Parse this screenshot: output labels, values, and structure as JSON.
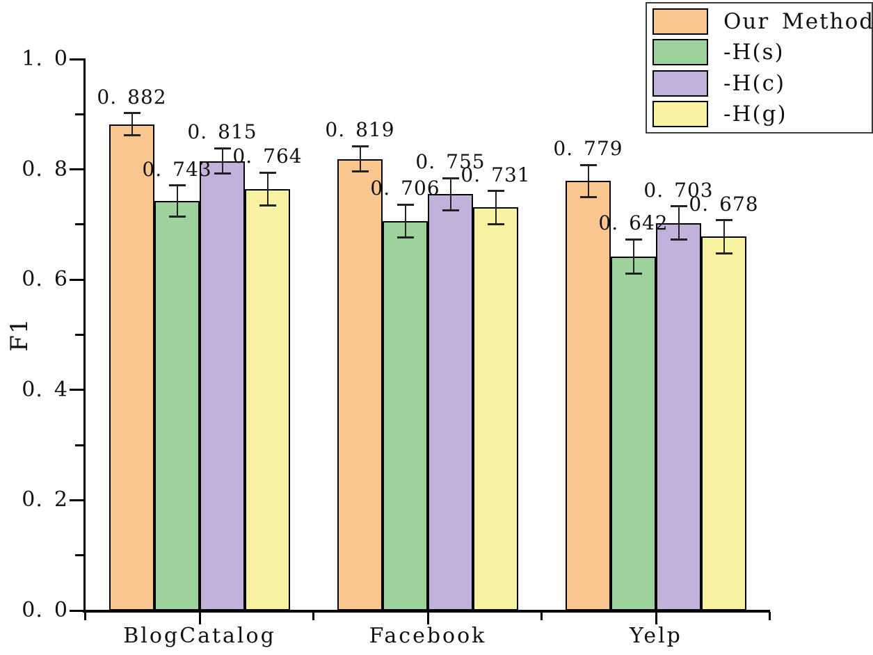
{
  "figure": {
    "background": "#ffffff",
    "text_color": "#111111",
    "axis_color": "#000000"
  },
  "chart_data": {
    "type": "bar",
    "title": "",
    "xlabel": "",
    "ylabel": "F1",
    "categories": [
      "BlogCatalog",
      "Facebook",
      "Yelp"
    ],
    "series": [
      {
        "name": "Our Method",
        "color": "#FAC690",
        "values": [
          0.882,
          0.819,
          0.779
        ],
        "errors": [
          0.02,
          0.023,
          0.029
        ]
      },
      {
        "name": "-H(s)",
        "color": "#9ED29D",
        "values": [
          0.743,
          0.706,
          0.642
        ],
        "errors": [
          0.028,
          0.03,
          0.031
        ]
      },
      {
        "name": "-H(c)",
        "color": "#C2B1DA",
        "values": [
          0.815,
          0.755,
          0.703
        ],
        "errors": [
          0.023,
          0.029,
          0.03
        ]
      },
      {
        "name": "-H(g)",
        "color": "#F8F3A2",
        "values": [
          0.764,
          0.731,
          0.678
        ],
        "errors": [
          0.03,
          0.03,
          0.03
        ]
      }
    ],
    "value_labels": [
      "0.882",
      "0.743",
      "0.815",
      "0.764",
      "0.819",
      "0.706",
      "0.755",
      "0.731",
      "0.779",
      "0.642",
      "0.703",
      "0.678"
    ],
    "ylim": [
      0.0,
      1.0
    ],
    "yticks_major": [
      0.0,
      0.2,
      0.4,
      0.6,
      0.8,
      1.0
    ],
    "yticks_minor": [
      0.1,
      0.3,
      0.5,
      0.7,
      0.9
    ],
    "grid": false,
    "error_bars": true,
    "bar_edge_color": "#000000",
    "legend_position": "top-right"
  }
}
